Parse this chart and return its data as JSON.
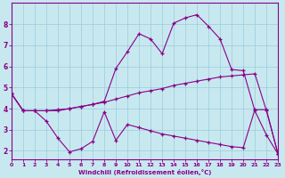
{
  "background_color": "#c8e8f0",
  "line_color": "#880088",
  "grid_color": "#99ccdd",
  "xlabel": "Windchill (Refroidissement éolien,°C)",
  "xlim": [
    0,
    23
  ],
  "ylim": [
    1.6,
    9.0
  ],
  "yticks": [
    2,
    3,
    4,
    5,
    6,
    7,
    8
  ],
  "xticks": [
    0,
    1,
    2,
    3,
    4,
    5,
    6,
    7,
    8,
    9,
    10,
    11,
    12,
    13,
    14,
    15,
    16,
    17,
    18,
    19,
    20,
    21,
    22,
    23
  ],
  "curve_top_x": [
    0,
    1,
    2,
    3,
    4,
    5,
    6,
    7,
    8,
    9,
    10,
    11,
    12,
    13,
    14,
    15,
    16,
    17,
    18,
    19,
    20,
    21,
    22,
    23
  ],
  "curve_top_y": [
    4.7,
    3.9,
    3.9,
    3.9,
    3.9,
    4.0,
    4.1,
    4.2,
    4.35,
    5.9,
    6.7,
    7.55,
    7.3,
    6.6,
    8.05,
    8.3,
    8.45,
    7.9,
    7.3,
    5.85,
    5.8,
    3.9,
    2.75,
    1.85
  ],
  "curve_mid_x": [
    0,
    1,
    2,
    3,
    4,
    5,
    6,
    7,
    8,
    9,
    10,
    11,
    12,
    13,
    14,
    15,
    16,
    17,
    18,
    19,
    20,
    21,
    22,
    23
  ],
  "curve_mid_y": [
    4.7,
    3.9,
    3.9,
    3.9,
    3.95,
    4.0,
    4.1,
    4.2,
    4.3,
    4.45,
    4.6,
    4.75,
    4.85,
    4.95,
    5.1,
    5.2,
    5.3,
    5.4,
    5.5,
    5.55,
    5.6,
    5.65,
    3.9,
    1.85
  ],
  "curve_bot_x": [
    0,
    1,
    2,
    3,
    4,
    5,
    6,
    7,
    8,
    9,
    10,
    11,
    12,
    13,
    14,
    15,
    16,
    17,
    18,
    19,
    20,
    21,
    22,
    23
  ],
  "curve_bot_y": [
    4.7,
    3.9,
    3.9,
    3.4,
    2.6,
    1.95,
    2.1,
    2.45,
    3.85,
    2.5,
    3.25,
    3.1,
    2.95,
    2.8,
    2.7,
    2.6,
    2.5,
    2.4,
    2.3,
    2.2,
    2.15,
    3.95,
    3.95,
    1.85
  ]
}
